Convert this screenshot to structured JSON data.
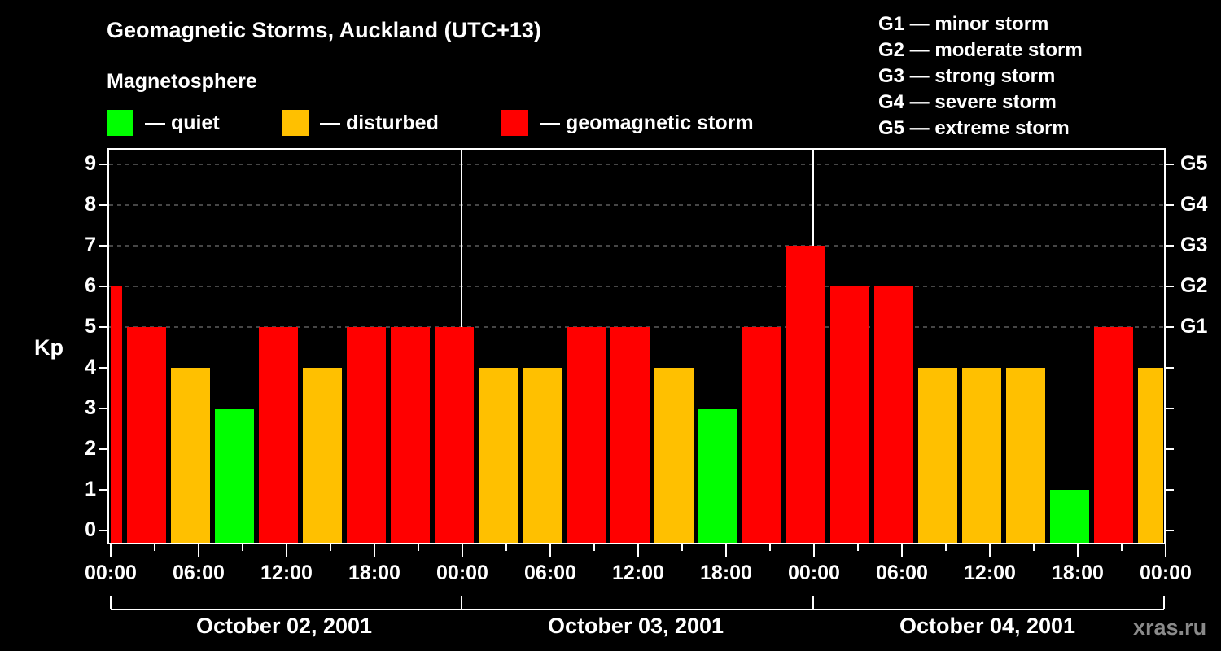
{
  "title": "Geomagnetic Storms, Auckland (UTC+13)",
  "subtitle": "Magnetosphere",
  "legend": [
    {
      "label": "— quiet",
      "color": "#00ff00"
    },
    {
      "label": "— disturbed",
      "color": "#ffc000"
    },
    {
      "label": "— geomagnetic storm",
      "color": "#ff0000"
    }
  ],
  "storm_scale": [
    "G1 — minor storm",
    "G2 — moderate storm",
    "G3 — strong storm",
    "G4 — severe storm",
    "G5 — extreme storm"
  ],
  "watermark": "xras.ru",
  "chart_data": {
    "type": "bar",
    "title": "Geomagnetic Storms, Auckland (UTC+13)",
    "ylabel": "Kp",
    "xlabel": "",
    "ylim": [
      0,
      9
    ],
    "yticks": [
      0,
      1,
      2,
      3,
      4,
      5,
      6,
      7,
      8,
      9
    ],
    "right_axis_ticks": [
      {
        "kp": 5,
        "label": "G1"
      },
      {
        "kp": 6,
        "label": "G2"
      },
      {
        "kp": 7,
        "label": "G3"
      },
      {
        "kp": 8,
        "label": "G4"
      },
      {
        "kp": 9,
        "label": "G5"
      }
    ],
    "xtick_labels": [
      "00:00",
      "06:00",
      "12:00",
      "18:00",
      "00:00",
      "06:00",
      "12:00",
      "18:00",
      "00:00",
      "06:00",
      "12:00",
      "18:00",
      "00:00"
    ],
    "dates": [
      "October 02, 2001",
      "October 03, 2001",
      "October 04, 2001"
    ],
    "grid": "dashed horizontal at Kp 5-9",
    "interval_hours": 3,
    "categories": [
      "Oct 02 00:00",
      "Oct 02 01:00",
      "Oct 02 04:00",
      "Oct 02 07:00",
      "Oct 02 10:00",
      "Oct 02 13:00",
      "Oct 02 16:00",
      "Oct 02 19:00",
      "Oct 02 22:00",
      "Oct 03 01:00",
      "Oct 03 04:00",
      "Oct 03 07:00",
      "Oct 03 10:00",
      "Oct 03 13:00",
      "Oct 03 16:00",
      "Oct 03 19:00",
      "Oct 03 22:00",
      "Oct 04 01:00",
      "Oct 04 04:00",
      "Oct 04 07:00",
      "Oct 04 10:00",
      "Oct 04 13:00",
      "Oct 04 16:00",
      "Oct 04 19:00",
      "Oct 04 22:00"
    ],
    "values": [
      6,
      5,
      4,
      3,
      5,
      4,
      5,
      5,
      5,
      4,
      4,
      5,
      5,
      4,
      3,
      5,
      7,
      6,
      6,
      4,
      4,
      4,
      1,
      5,
      4
    ],
    "color_rule": {
      "quiet": "Kp<=3 #00ff00",
      "disturbed": "Kp=4 #ffc000",
      "storm": "Kp>=5 #ff0000"
    }
  }
}
